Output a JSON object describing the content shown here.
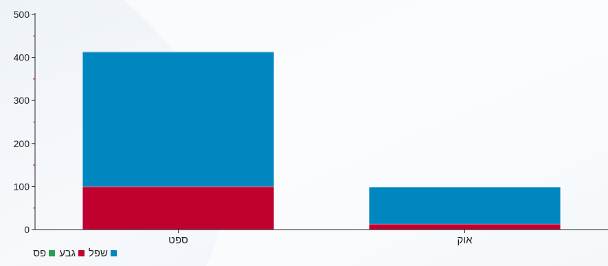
{
  "chart_data": {
    "type": "bar",
    "stacked": true,
    "categories": [
      "ספט",
      "אוק"
    ],
    "series": [
      {
        "name": "פס",
        "color": "#2a9d55",
        "values": [
          0,
          0
        ]
      },
      {
        "name": "גבע",
        "color": "#c0002e",
        "values": [
          100,
          13
        ]
      },
      {
        "name": "שפל",
        "color": "#0087c0",
        "values": [
          313,
          86
        ]
      }
    ],
    "yticks": [
      0,
      100,
      200,
      300,
      400,
      500
    ],
    "ylim": [
      0,
      500
    ],
    "grid": false,
    "legend_position": "bottom-left"
  }
}
